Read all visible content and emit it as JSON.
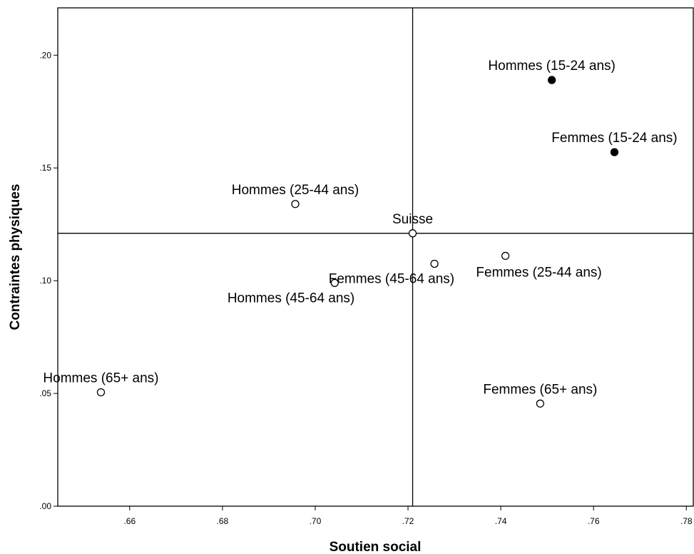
{
  "chart_data": {
    "type": "scatter",
    "title": "",
    "xlabel": "Soutien social",
    "ylabel": "Contraintes physiques",
    "xlim": [
      0.6445,
      0.7815
    ],
    "ylim": [
      0.0,
      0.221
    ],
    "x_ticks": [
      {
        "value": 0.66,
        "label": ".66"
      },
      {
        "value": 0.68,
        "label": ".68"
      },
      {
        "value": 0.7,
        "label": ".70"
      },
      {
        "value": 0.72,
        "label": ".72"
      },
      {
        "value": 0.74,
        "label": ".74"
      },
      {
        "value": 0.76,
        "label": ".76"
      },
      {
        "value": 0.78,
        "label": ".78"
      }
    ],
    "y_ticks": [
      {
        "value": 0.0,
        "label": ".00"
      },
      {
        "value": 0.05,
        "label": ".05"
      },
      {
        "value": 0.1,
        "label": ".10"
      },
      {
        "value": 0.15,
        "label": ".15"
      },
      {
        "value": 0.2,
        "label": ".20"
      }
    ],
    "reference_lines": {
      "x": 0.721,
      "y": 0.121
    },
    "grid": false,
    "legend": "none",
    "points": [
      {
        "label": "Hommes (15-24 ans)",
        "x": 0.751,
        "y": 0.189,
        "filled": true,
        "label_pos": "above"
      },
      {
        "label": "Femmes (15-24 ans)",
        "x": 0.7645,
        "y": 0.157,
        "filled": true,
        "label_pos": "above"
      },
      {
        "label": "Hommes (25-44 ans)",
        "x": 0.6957,
        "y": 0.134,
        "filled": false,
        "label_pos": "above"
      },
      {
        "label": "Suisse",
        "x": 0.721,
        "y": 0.121,
        "filled": false,
        "label_pos": "above"
      },
      {
        "label": "Femmes (25-44 ans)",
        "x": 0.741,
        "y": 0.111,
        "filled": false,
        "label_pos": "below"
      },
      {
        "label": "Femmes (45-64 ans)",
        "x": 0.7257,
        "y": 0.1075,
        "filled": false,
        "label_pos": "below-left"
      },
      {
        "label": "Hommes (45-64 ans)",
        "x": 0.7042,
        "y": 0.099,
        "filled": false,
        "label_pos": "below-left"
      },
      {
        "label": "Hommes (65+ ans)",
        "x": 0.6538,
        "y": 0.0505,
        "filled": false,
        "label_pos": "above"
      },
      {
        "label": "Femmes (65+ ans)",
        "x": 0.7485,
        "y": 0.0455,
        "filled": false,
        "label_pos": "above"
      }
    ]
  }
}
